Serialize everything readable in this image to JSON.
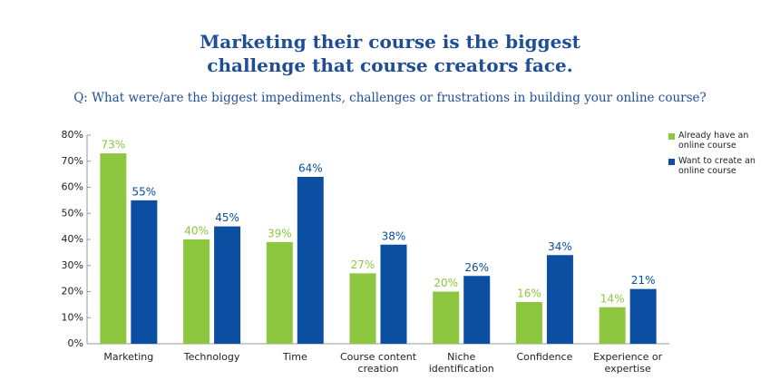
{
  "chart_data": {
    "type": "bar",
    "title": [
      "Marketing their course is the biggest",
      "challenge that course creators face."
    ],
    "subtitle": "Q: What were/are the biggest impediments, challenges or frustrations in building your online course?",
    "categories": [
      "Marketing",
      "Technology",
      "Time",
      "Course content creation",
      "Niche identification",
      "Confidence",
      "Experience or expertise"
    ],
    "series": [
      {
        "name": "Already have an online course",
        "color": "#8dc63f",
        "values": [
          73,
          40,
          39,
          27,
          20,
          16,
          14
        ],
        "value_labels": [
          "73%",
          "40%",
          "39%",
          "27%",
          "20%",
          "16%",
          "14%"
        ]
      },
      {
        "name": "Want to create an online course",
        "color": "#0b4ea2",
        "values": [
          55,
          45,
          64,
          38,
          26,
          34,
          21
        ],
        "value_labels": [
          "55%",
          "45%",
          "64%",
          "38%",
          "26%",
          "34%",
          "21%"
        ]
      }
    ],
    "ylim": [
      0,
      80
    ],
    "yticks": [
      {
        "value": 0,
        "label": "0%"
      },
      {
        "value": 10,
        "label": "10%"
      },
      {
        "value": 20,
        "label": "20%"
      },
      {
        "value": 30,
        "label": "30%"
      },
      {
        "value": 40,
        "label": "40%"
      },
      {
        "value": 50,
        "label": "50%"
      },
      {
        "value": 60,
        "label": "60%"
      },
      {
        "value": 70,
        "label": "70%"
      },
      {
        "value": 80,
        "label": "80%"
      }
    ],
    "legend": "top-right"
  }
}
